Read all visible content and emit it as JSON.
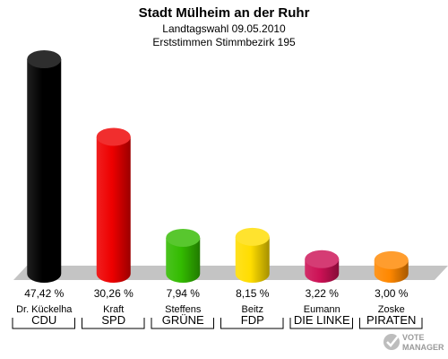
{
  "header": {
    "title": "Stadt Mülheim an der Ruhr",
    "subtitle": "Landtagswahl 09.05.2010",
    "subtitle2": "Erststimmen Stimmbezirk 195"
  },
  "logo": {
    "text": "VOTEMANAGER",
    "icon": "checkmark-ballot-icon"
  },
  "chart_data": {
    "type": "bar",
    "title": "Stadt Mülheim an der Ruhr",
    "subtitle": "Landtagswahl 09.05.2010 / Erststimmen Stimmbezirk 195",
    "categories": [
      "CDU",
      "SPD",
      "GRÜNE",
      "FDP",
      "DIE LINKE",
      "PIRATEN"
    ],
    "candidates": [
      "Dr. Kückelha",
      "Kraft",
      "Steffens",
      "Beitz",
      "Eumann",
      "Zoske"
    ],
    "values": [
      47.42,
      30.26,
      7.94,
      8.15,
      3.22,
      3.0
    ],
    "value_labels": [
      "47,42 %",
      "30,26 %",
      "7,94 %",
      "8,15 %",
      "3,22 %",
      "3,00 %"
    ],
    "colors": [
      "#000000",
      "#ee0000",
      "#33bb00",
      "#ffdd00",
      "#cc1155",
      "#ff8800"
    ],
    "unit": "%",
    "grid": false,
    "legend": "none"
  }
}
